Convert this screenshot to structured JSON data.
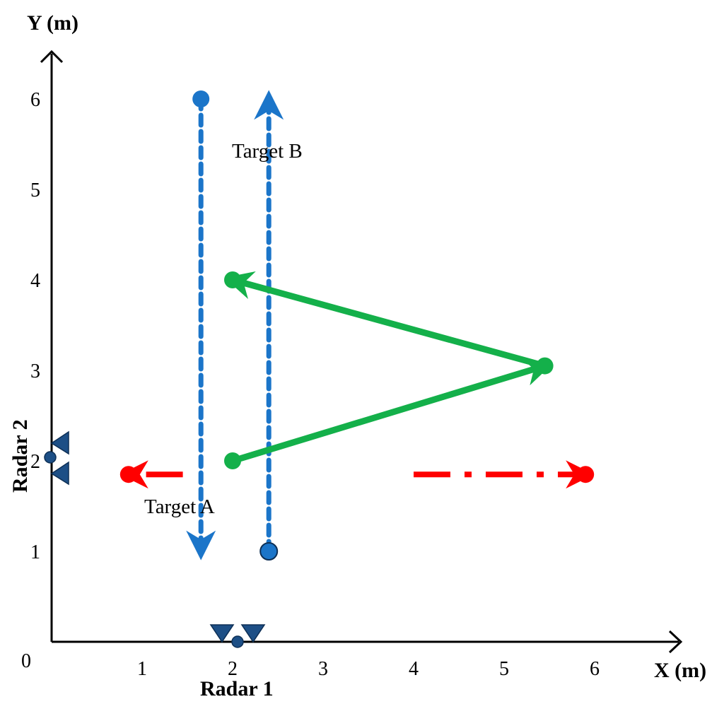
{
  "axes": {
    "x_title": "X (m)",
    "y_title": "Y (m)",
    "origin_label": "0",
    "x_ticks": [
      "1",
      "2",
      "3",
      "4",
      "5",
      "6"
    ],
    "y_ticks": [
      "1",
      "2",
      "3",
      "4",
      "5",
      "6"
    ]
  },
  "labels": {
    "target_a": "Target A",
    "target_b": "Target B",
    "radar_1": "Radar 1",
    "radar_2": "Radar 2"
  },
  "colors": {
    "target_a_path": "#ff0000",
    "target_b_path": "#1b75c9",
    "green_path": "#14b04a",
    "radar": "#1d4f86",
    "axis": "#000000"
  },
  "chart_data": {
    "type": "scatter",
    "x_range": [
      0,
      6.6
    ],
    "y_range": [
      0,
      6.6
    ],
    "paths": [
      {
        "style": "dash-dot",
        "color": "red",
        "points": [
          [
            1.45,
            1.85
          ],
          [
            0.85,
            1.85
          ]
        ],
        "arrow_at_end": true
      },
      {
        "style": "dash-dot",
        "color": "red",
        "points": [
          [
            4.0,
            1.85
          ],
          [
            5.9,
            1.85
          ]
        ],
        "arrow_at_end": true
      },
      {
        "style": "dotted",
        "color": "blue",
        "points": [
          [
            1.65,
            6.0
          ],
          [
            1.65,
            1.0
          ]
        ],
        "arrow_at_end": true
      },
      {
        "style": "dotted",
        "color": "blue",
        "points": [
          [
            2.4,
            1.0
          ],
          [
            2.4,
            6.0
          ]
        ],
        "arrow_at_end": true
      },
      {
        "style": "solid",
        "color": "green",
        "points": [
          [
            2.0,
            2.0
          ],
          [
            5.45,
            3.05
          ]
        ],
        "arrow_at_end": true
      },
      {
        "style": "solid",
        "color": "green",
        "points": [
          [
            5.45,
            3.05
          ],
          [
            2.0,
            4.0
          ]
        ],
        "arrow_at_end": true
      }
    ],
    "radars": [
      {
        "label": "Radar 1",
        "x": 2.05,
        "y": 0.0
      },
      {
        "label": "Radar 2",
        "x": 0.0,
        "y": 2.0
      }
    ]
  }
}
